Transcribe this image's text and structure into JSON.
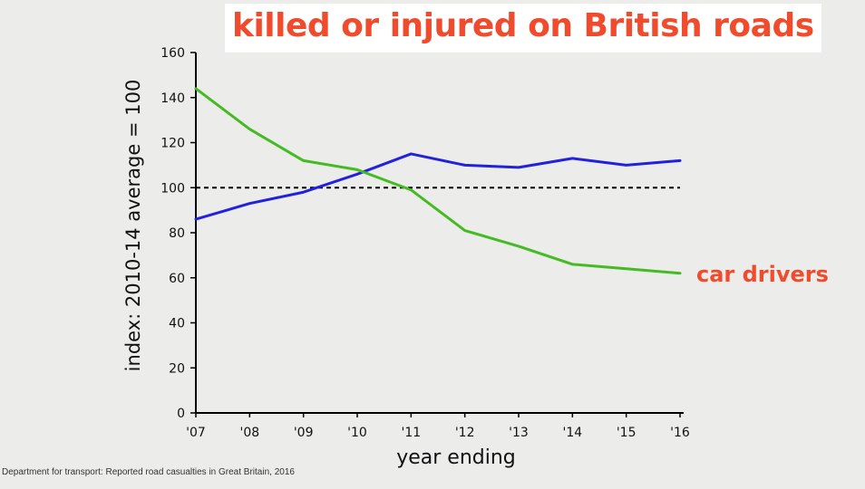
{
  "title": "killed or injured on British roads",
  "source": "Department for transport: Reported road casualties in Great Britain, 2016",
  "colors": {
    "title": "#f04b2d",
    "blue_series": "#2222dd",
    "green_series": "#44bb22",
    "label": "#f04b2d"
  },
  "chart_data": {
    "type": "line",
    "xlabel": "year ending",
    "ylabel": "index: 2010-14 average = 100",
    "ylim": [
      0,
      160
    ],
    "yticks": [
      0,
      20,
      40,
      60,
      80,
      100,
      120,
      140,
      160
    ],
    "categories": [
      "'07",
      "'08",
      "'09",
      "'10",
      "'11",
      "'12",
      "'13",
      "'14",
      "'15",
      "'16"
    ],
    "reference_line": {
      "value": 100,
      "style": "dashed"
    },
    "grid": false,
    "series": [
      {
        "name": "",
        "color": "#2222dd",
        "values": [
          86,
          93,
          98,
          106,
          115,
          110,
          109,
          113,
          110,
          112
        ]
      },
      {
        "name": "car drivers",
        "color": "#44bb22",
        "values": [
          144,
          126,
          112,
          108,
          99,
          81,
          74,
          66,
          64,
          62
        ]
      }
    ],
    "annotations": [
      {
        "text": "car drivers",
        "series": "car drivers"
      }
    ]
  }
}
